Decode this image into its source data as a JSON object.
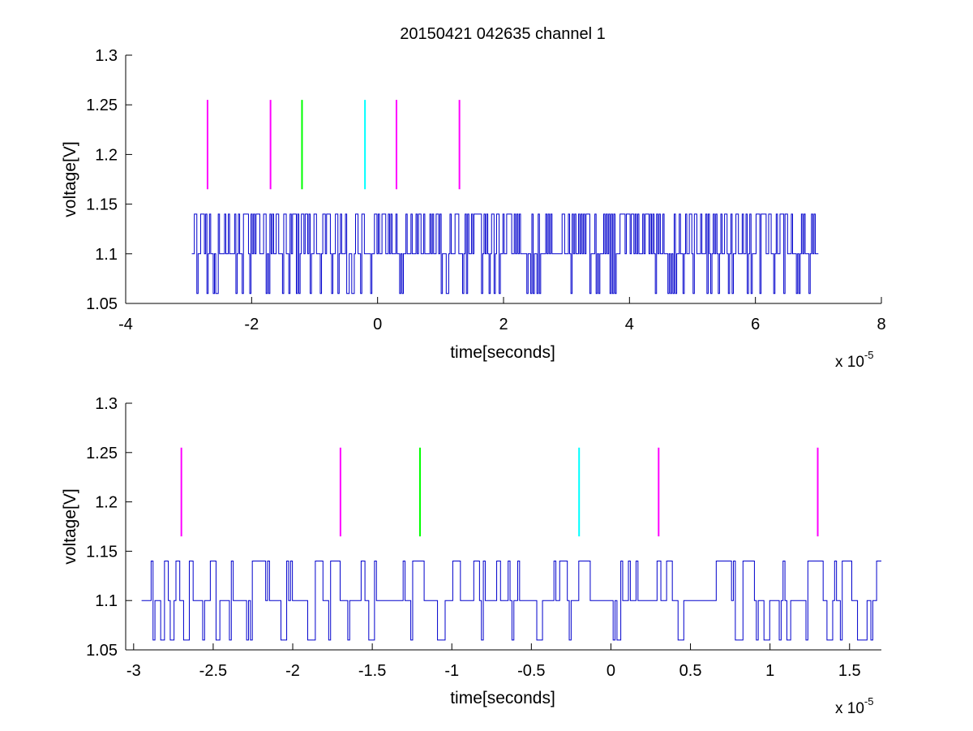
{
  "figure_title": "20150421 042635 channel 1",
  "chart_data": [
    {
      "type": "line",
      "title": "20150421 042635 channel 1",
      "xlabel": "time[seconds]",
      "ylabel": "voltage[V]",
      "x_exponent_label": "x 10",
      "x_exponent": "-5",
      "xlim": [
        -4,
        8
      ],
      "ylim": [
        1.05,
        1.3
      ],
      "x_ticks": [
        -4,
        -2,
        0,
        2,
        4,
        6,
        8
      ],
      "x_tick_labels": [
        "-4",
        "-2",
        "0",
        "2",
        "4",
        "6",
        "8"
      ],
      "y_ticks": [
        1.05,
        1.1,
        1.15,
        1.2,
        1.25,
        1.3
      ],
      "y_tick_labels": [
        "1.05",
        "1.1",
        "1.15",
        "1.2",
        "1.25",
        "1.3"
      ],
      "grid": false,
      "signal": {
        "color": "#0000cc",
        "x_range": [
          -2.95,
          7.0
        ],
        "levels": [
          1.06,
          1.1,
          1.14
        ],
        "base_level": 1.1
      },
      "markers": [
        {
          "x": -2.7,
          "y0": 1.165,
          "y1": 1.255,
          "color": "#ff00ff"
        },
        {
          "x": -1.7,
          "y0": 1.165,
          "y1": 1.255,
          "color": "#ff00ff"
        },
        {
          "x": -1.2,
          "y0": 1.165,
          "y1": 1.255,
          "color": "#00ff00"
        },
        {
          "x": -0.2,
          "y0": 1.165,
          "y1": 1.255,
          "color": "#00ffff"
        },
        {
          "x": 0.3,
          "y0": 1.165,
          "y1": 1.255,
          "color": "#ff00ff"
        },
        {
          "x": 1.3,
          "y0": 1.165,
          "y1": 1.255,
          "color": "#ff00ff"
        }
      ]
    },
    {
      "type": "line",
      "title": "",
      "xlabel": "time[seconds]",
      "ylabel": "voltage[V]",
      "x_exponent_label": "x 10",
      "x_exponent": "-5",
      "xlim": [
        -3.05,
        1.7
      ],
      "ylim": [
        1.05,
        1.3
      ],
      "x_ticks": [
        -3,
        -2.5,
        -2,
        -1.5,
        -1,
        -0.5,
        0,
        0.5,
        1,
        1.5
      ],
      "x_tick_labels": [
        "-3",
        "-2.5",
        "-2",
        "-1.5",
        "-1",
        "-0.5",
        "0",
        "0.5",
        "1",
        "1.5"
      ],
      "y_ticks": [
        1.05,
        1.1,
        1.15,
        1.2,
        1.25,
        1.3
      ],
      "y_tick_labels": [
        "1.05",
        "1.1",
        "1.15",
        "1.2",
        "1.25",
        "1.3"
      ],
      "grid": false,
      "signal": {
        "color": "#0000cc",
        "x_range": [
          -2.95,
          1.7
        ],
        "levels": [
          1.06,
          1.1,
          1.14
        ],
        "base_level": 1.1
      },
      "markers": [
        {
          "x": -2.7,
          "y0": 1.165,
          "y1": 1.255,
          "color": "#ff00ff"
        },
        {
          "x": -1.7,
          "y0": 1.165,
          "y1": 1.255,
          "color": "#ff00ff"
        },
        {
          "x": -1.2,
          "y0": 1.165,
          "y1": 1.255,
          "color": "#00ff00"
        },
        {
          "x": -0.2,
          "y0": 1.165,
          "y1": 1.255,
          "color": "#00ffff"
        },
        {
          "x": 0.3,
          "y0": 1.165,
          "y1": 1.255,
          "color": "#ff00ff"
        },
        {
          "x": 1.3,
          "y0": 1.165,
          "y1": 1.255,
          "color": "#ff00ff"
        }
      ]
    }
  ]
}
